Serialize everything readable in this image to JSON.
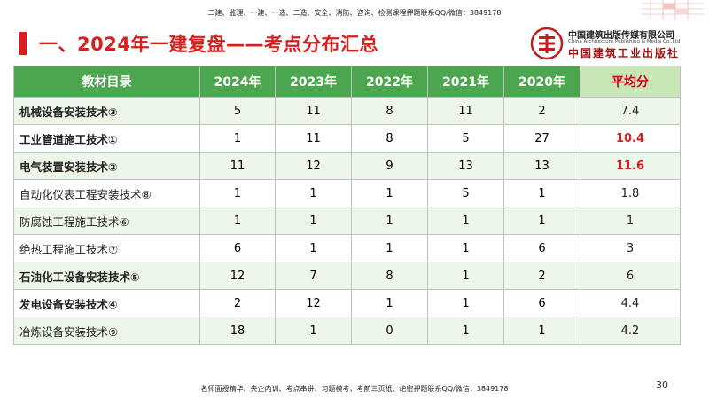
{
  "header_note": "二建、监理、一建、一造、二造、安全、消防、咨询、检测课程押题联系QQ/微信：3849178",
  "title": "一、2024年一建复盘——考点分布汇总",
  "publisher": {
    "name_cn": "中国建筑出版传媒有限公司",
    "name_en": "China Architecture Publishing & Media Co.,Ltd",
    "brand": "中国建筑工业出版社"
  },
  "table": {
    "headers": [
      "教材目录",
      "2024年",
      "2023年",
      "2022年",
      "2021年",
      "2020年",
      "平均分"
    ],
    "rows": [
      {
        "name": "机械设备安装技术③",
        "v": [
          "5",
          "11",
          "8",
          "11",
          "2"
        ],
        "avg": "7.4"
      },
      {
        "name": "工业管道施工技术①",
        "v": [
          "1",
          "11",
          "8",
          "5",
          "27"
        ],
        "avg": "10.4"
      },
      {
        "name": "电气装置安装技术②",
        "v": [
          "11",
          "12",
          "9",
          "13",
          "13"
        ],
        "avg": "11.6"
      },
      {
        "name": "自动化仪表工程安装技术⑧",
        "v": [
          "1",
          "1",
          "1",
          "5",
          "1"
        ],
        "avg": "1.8"
      },
      {
        "name": "防腐蚀工程施工技术⑥",
        "v": [
          "1",
          "1",
          "1",
          "1",
          "1"
        ],
        "avg": "1"
      },
      {
        "name": "绝热工程施工技术⑦",
        "v": [
          "6",
          "1",
          "1",
          "1",
          "6"
        ],
        "avg": "3"
      },
      {
        "name": "石油化工设备安装技术⑤",
        "v": [
          "12",
          "7",
          "8",
          "1",
          "2"
        ],
        "avg": "6"
      },
      {
        "name": "发电设备安装技术④",
        "v": [
          "2",
          "12",
          "1",
          "1",
          "6"
        ],
        "avg": "4.4"
      },
      {
        "name": "冶炼设备安装技术⑨",
        "v": [
          "18",
          "1",
          "0",
          "1",
          "1"
        ],
        "avg": "4.2"
      }
    ]
  },
  "footer_note": "名师面授精华、央企内训、考点串讲、习题模考、考前三页纸、绝密押题联系QQ/微信：3849178",
  "page_number": "30",
  "colors": {
    "accent_red": "#d81e1e",
    "header_green": "#4ba64f",
    "row_tint": "#edf7e9"
  }
}
